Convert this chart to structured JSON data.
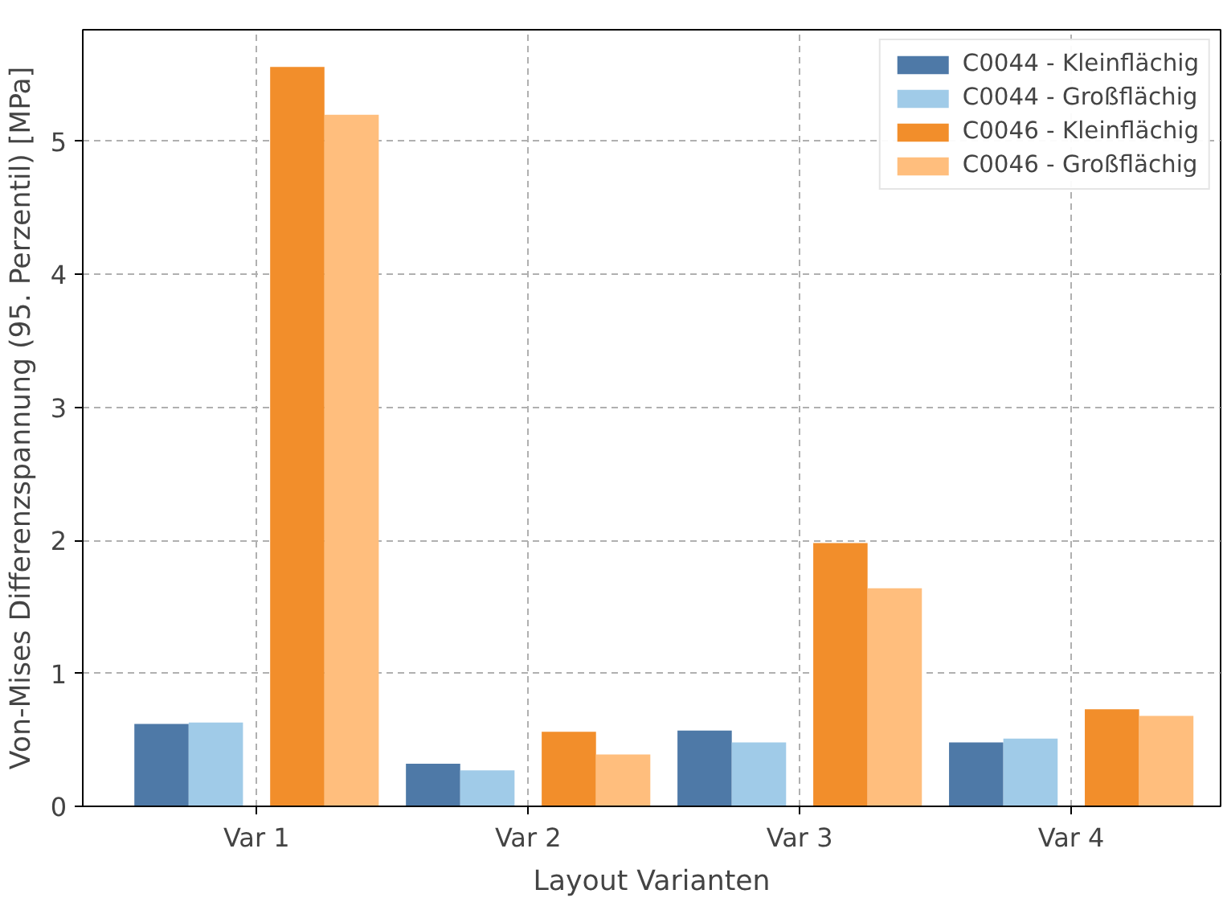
{
  "chart_data": {
    "type": "bar",
    "xlabel": "Layout Varianten",
    "ylabel": "Von-Mises Differenzspannung (95. Perzentil) [MPa]",
    "categories": [
      "Var 1",
      "Var 2",
      "Var 3",
      "Var 4"
    ],
    "series": [
      {
        "name": "C0044 - Kleinflächig",
        "color": "#4e79a7",
        "values": [
          0.62,
          0.32,
          0.57,
          0.48
        ]
      },
      {
        "name": "C0044 - Großflächig",
        "color": "#a0cbe8",
        "values": [
          0.63,
          0.27,
          0.48,
          0.51
        ]
      },
      {
        "name": "C0046 - Kleinflächig",
        "color": "#f28e2b",
        "values": [
          5.56,
          0.56,
          1.98,
          0.73
        ]
      },
      {
        "name": "C0046 - Großflächig",
        "color": "#ffbe7d",
        "values": [
          5.2,
          0.39,
          1.64,
          0.68
        ]
      }
    ],
    "ylim": [
      0,
      5.84
    ],
    "yticks": [
      0,
      1,
      2,
      3,
      4,
      5
    ],
    "grid": true,
    "legend": "top right"
  }
}
